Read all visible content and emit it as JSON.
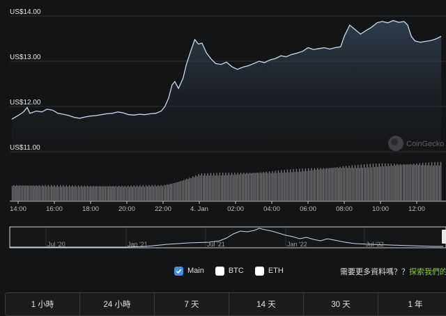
{
  "chart_data": {
    "type": "area",
    "yticks": [
      "US$14.00",
      "US$13.00",
      "US$12.00",
      "US$11.00"
    ],
    "ylim": [
      11.0,
      14.0
    ],
    "xticks": [
      "14:00",
      "16:00",
      "18:00",
      "20:00",
      "22:00",
      "4. Jan",
      "02:00",
      "04:00",
      "06:00",
      "08:00",
      "10:00",
      "12:00"
    ],
    "price_series": [
      {
        "h": 13.65,
        "v": 11.72
      },
      {
        "h": 14.0,
        "v": 11.8
      },
      {
        "h": 14.3,
        "v": 11.88
      },
      {
        "h": 14.5,
        "v": 11.98
      },
      {
        "h": 14.65,
        "v": 11.85
      },
      {
        "h": 15.0,
        "v": 11.9
      },
      {
        "h": 15.3,
        "v": 11.88
      },
      {
        "h": 15.6,
        "v": 11.94
      },
      {
        "h": 15.9,
        "v": 11.92
      },
      {
        "h": 16.2,
        "v": 11.85
      },
      {
        "h": 16.5,
        "v": 11.83
      },
      {
        "h": 16.8,
        "v": 11.8
      },
      {
        "h": 17.1,
        "v": 11.76
      },
      {
        "h": 17.4,
        "v": 11.74
      },
      {
        "h": 17.7,
        "v": 11.77
      },
      {
        "h": 18.0,
        "v": 11.79
      },
      {
        "h": 18.3,
        "v": 11.8
      },
      {
        "h": 18.6,
        "v": 11.82
      },
      {
        "h": 18.9,
        "v": 11.84
      },
      {
        "h": 19.2,
        "v": 11.85
      },
      {
        "h": 19.5,
        "v": 11.88
      },
      {
        "h": 19.8,
        "v": 11.86
      },
      {
        "h": 20.1,
        "v": 11.82
      },
      {
        "h": 20.4,
        "v": 11.81
      },
      {
        "h": 20.7,
        "v": 11.83
      },
      {
        "h": 21.0,
        "v": 11.82
      },
      {
        "h": 21.3,
        "v": 11.84
      },
      {
        "h": 21.6,
        "v": 11.85
      },
      {
        "h": 21.9,
        "v": 11.9
      },
      {
        "h": 22.1,
        "v": 12.0
      },
      {
        "h": 22.3,
        "v": 12.18
      },
      {
        "h": 22.5,
        "v": 12.48
      },
      {
        "h": 22.65,
        "v": 12.55
      },
      {
        "h": 22.85,
        "v": 12.4
      },
      {
        "h": 23.1,
        "v": 12.62
      },
      {
        "h": 23.3,
        "v": 12.95
      },
      {
        "h": 23.55,
        "v": 13.25
      },
      {
        "h": 23.75,
        "v": 13.48
      },
      {
        "h": 23.95,
        "v": 13.38
      },
      {
        "h": 24.15,
        "v": 13.4
      },
      {
        "h": 24.4,
        "v": 13.18
      },
      {
        "h": 24.65,
        "v": 13.05
      },
      {
        "h": 24.9,
        "v": 12.95
      },
      {
        "h": 25.2,
        "v": 12.93
      },
      {
        "h": 25.5,
        "v": 12.98
      },
      {
        "h": 25.8,
        "v": 12.88
      },
      {
        "h": 26.1,
        "v": 12.82
      },
      {
        "h": 26.4,
        "v": 12.87
      },
      {
        "h": 26.7,
        "v": 12.9
      },
      {
        "h": 27.0,
        "v": 12.95
      },
      {
        "h": 27.3,
        "v": 13.0
      },
      {
        "h": 27.6,
        "v": 12.97
      },
      {
        "h": 27.9,
        "v": 13.03
      },
      {
        "h": 28.2,
        "v": 13.06
      },
      {
        "h": 28.5,
        "v": 13.12
      },
      {
        "h": 28.8,
        "v": 13.1
      },
      {
        "h": 29.1,
        "v": 13.15
      },
      {
        "h": 29.4,
        "v": 13.18
      },
      {
        "h": 29.7,
        "v": 13.22
      },
      {
        "h": 30.0,
        "v": 13.3
      },
      {
        "h": 30.3,
        "v": 13.26
      },
      {
        "h": 30.6,
        "v": 13.28
      },
      {
        "h": 30.9,
        "v": 13.3
      },
      {
        "h": 31.2,
        "v": 13.27
      },
      {
        "h": 31.5,
        "v": 13.3
      },
      {
        "h": 31.8,
        "v": 13.32
      },
      {
        "h": 32.0,
        "v": 13.55
      },
      {
        "h": 32.3,
        "v": 13.8
      },
      {
        "h": 32.6,
        "v": 13.7
      },
      {
        "h": 32.9,
        "v": 13.6
      },
      {
        "h": 33.2,
        "v": 13.68
      },
      {
        "h": 33.5,
        "v": 13.75
      },
      {
        "h": 33.8,
        "v": 13.85
      },
      {
        "h": 34.1,
        "v": 13.88
      },
      {
        "h": 34.4,
        "v": 13.85
      },
      {
        "h": 34.7,
        "v": 13.9
      },
      {
        "h": 35.0,
        "v": 13.86
      },
      {
        "h": 35.3,
        "v": 13.88
      },
      {
        "h": 35.5,
        "v": 13.8
      },
      {
        "h": 35.7,
        "v": 13.55
      },
      {
        "h": 35.9,
        "v": 13.45
      },
      {
        "h": 36.2,
        "v": 13.42
      },
      {
        "h": 36.5,
        "v": 13.44
      },
      {
        "h": 36.8,
        "v": 13.46
      },
      {
        "h": 37.1,
        "v": 13.5
      },
      {
        "h": 37.35,
        "v": 13.55
      }
    ],
    "volume_series": [
      {
        "h": 13.65,
        "v": 0.36
      },
      {
        "h": 16.0,
        "v": 0.35
      },
      {
        "h": 18.0,
        "v": 0.34
      },
      {
        "h": 20.0,
        "v": 0.34
      },
      {
        "h": 22.0,
        "v": 0.36
      },
      {
        "h": 22.8,
        "v": 0.44
      },
      {
        "h": 24.0,
        "v": 0.62
      },
      {
        "h": 26.0,
        "v": 0.64
      },
      {
        "h": 28.0,
        "v": 0.68
      },
      {
        "h": 30.0,
        "v": 0.74
      },
      {
        "h": 32.0,
        "v": 0.8
      },
      {
        "h": 34.0,
        "v": 0.85
      },
      {
        "h": 36.0,
        "v": 0.87
      },
      {
        "h": 37.35,
        "v": 0.88
      }
    ],
    "navigator": {
      "xticks": [
        "Jul '20",
        "Jan '21",
        "Jul '21",
        "Jan '22",
        "Jul '22"
      ]
    },
    "watermark": "CoinGecko"
  },
  "series_toggles": [
    {
      "label": "Main",
      "checked": true
    },
    {
      "label": "BTC",
      "checked": false
    },
    {
      "label": "ETH",
      "checked": false
    }
  ],
  "more_data": {
    "prompt": "需要更多資料嗎？？",
    "link": "探索我們的A"
  },
  "range_tabs": [
    "1 小時",
    "24 小時",
    "7 天",
    "14 天",
    "30 天",
    "1 年"
  ],
  "colors": {
    "line": "#c9dcf0",
    "accent_checkbox": "#4a8bdf",
    "link": "#8dc63f",
    "bars": "#7d7f83"
  }
}
